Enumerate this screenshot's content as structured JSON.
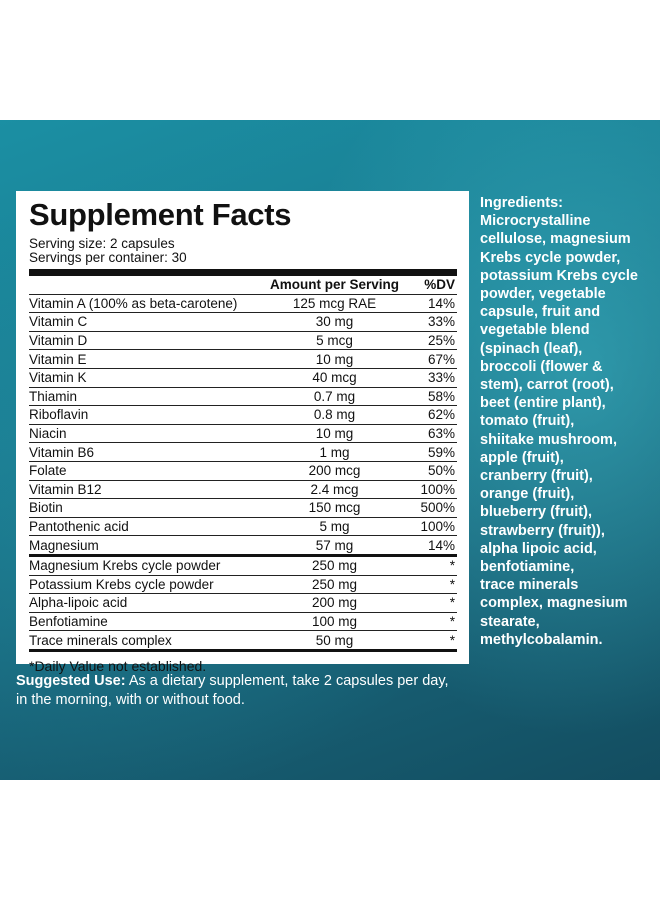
{
  "facts": {
    "title": "Supplement Facts",
    "serving_size": "Serving size: 2 capsules",
    "servings_per_container": "Servings per container: 30",
    "col_amount": "Amount per Serving",
    "col_dv": "%DV",
    "nutrients": [
      {
        "name": "Vitamin A (100% as beta-carotene)",
        "amount": "125 mcg RAE",
        "dv": "14%"
      },
      {
        "name": "Vitamin C",
        "amount": "30 mg",
        "dv": "33%"
      },
      {
        "name": "Vitamin D",
        "amount": "5 mcg",
        "dv": "25%"
      },
      {
        "name": "Vitamin E",
        "amount": "10 mg",
        "dv": "67%"
      },
      {
        "name": "Vitamin K",
        "amount": "40 mcg",
        "dv": "33%"
      },
      {
        "name": "Thiamin",
        "amount": "0.7 mg",
        "dv": "58%"
      },
      {
        "name": "Riboflavin",
        "amount": "0.8 mg",
        "dv": "62%"
      },
      {
        "name": "Niacin",
        "amount": "10 mg",
        "dv": "63%"
      },
      {
        "name": "Vitamin B6",
        "amount": "1 mg",
        "dv": "59%"
      },
      {
        "name": "Folate",
        "amount": "200 mcg",
        "dv": "50%"
      },
      {
        "name": "Vitamin B12",
        "amount": "2.4 mcg",
        "dv": "100%"
      },
      {
        "name": "Biotin",
        "amount": "150 mcg",
        "dv": "500%"
      },
      {
        "name": "Pantothenic acid",
        "amount": "5 mg",
        "dv": "100%"
      },
      {
        "name": "Magnesium",
        "amount": "57 mg",
        "dv": "14%"
      }
    ],
    "other": [
      {
        "name": "Magnesium Krebs cycle powder",
        "amount": "250 mg",
        "dv": "*"
      },
      {
        "name": "Potassium Krebs cycle powder",
        "amount": "250 mg",
        "dv": "*"
      },
      {
        "name": "Alpha-lipoic acid",
        "amount": "200 mg",
        "dv": "*"
      },
      {
        "name": "Benfotiamine",
        "amount": "100 mg",
        "dv": "*"
      },
      {
        "name": "Trace minerals complex",
        "amount": "50 mg",
        "dv": "*"
      }
    ],
    "footnote": "*Daily Value not established."
  },
  "ingredients": {
    "heading": "Ingredients:",
    "lines": [
      "Microcrystalline",
      "cellulose, magnesium",
      "Krebs cycle powder,",
      "potassium Krebs cycle",
      "powder, vegetable",
      "capsule, fruit and",
      "vegetable blend",
      "(spinach (leaf),",
      "broccoli (flower &",
      "stem), carrot (root),",
      "beet (entire plant),",
      "tomato (fruit),",
      "shiitake mushroom,",
      "apple (fruit),",
      "cranberry (fruit),",
      "orange (fruit),",
      "blueberry (fruit),",
      "strawberry (fruit)),",
      "alpha lipoic acid,",
      "benfotiamine,",
      "trace minerals",
      "complex, magnesium",
      "stearate,",
      "methylcobalamin."
    ]
  },
  "suggested_use": {
    "label": "Suggested Use:",
    "text": " As a dietary supplement, take 2 capsules per day, in the morning, with or without food."
  },
  "colors": {
    "panel_teal": "#1a7d92",
    "panel_dark": "#134d60",
    "text_dark": "#111111",
    "text_light": "#ffffff"
  }
}
